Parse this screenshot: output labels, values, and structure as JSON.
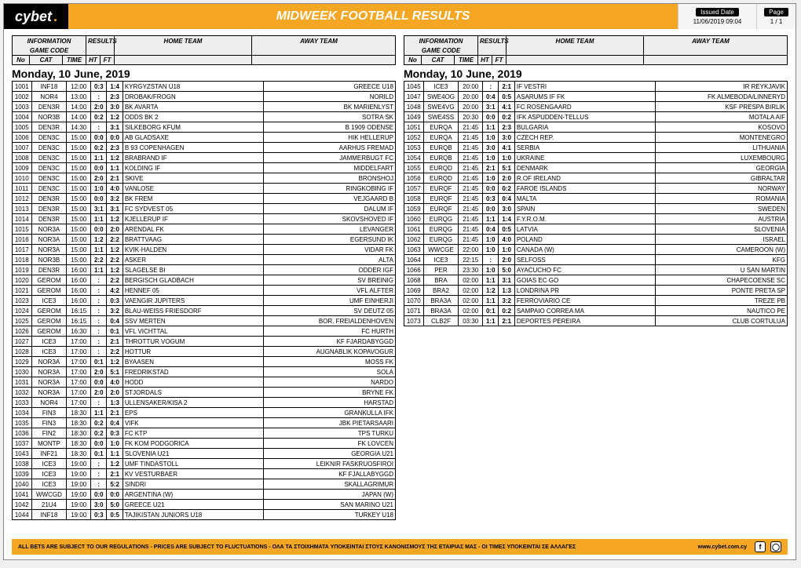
{
  "brand": {
    "cy": "cy",
    "bet": "bet",
    "dot": "."
  },
  "title": "MIDWEEK FOOTBALL RESULTS",
  "issued": {
    "label": "Issued Date",
    "value": "11/06/2019 09:04"
  },
  "page": {
    "label": "Page",
    "value": "1 / 1"
  },
  "footer": {
    "disclaimer": "ALL BETS ARE SUBJECT TO OUR REGULATIONS - PRICES ARE SUBJECT TO FLUCTUATIONS - ΟΛΑ ΤΑ ΣΤΟΙΧΗΜΑΤΑ ΥΠΟΚΕΙΝΤΑΙ ΣΤΟΥΣ ΚΑΝΟΝΙΣΜΟΥΣ ΤΗΣ ΕΤΑΙΡΙΑΣ ΜΑΣ - ΟΙ ΤΙΜΕΣ ΥΠΟΚΕΙΝΤΑΙ ΣΕ ΑΛΛΑΓΕΣ",
    "url": "www.cybet.com.cy"
  },
  "header_labels": {
    "information": "INFORMATION",
    "gamecode": "GAME CODE",
    "results": "RESULTS",
    "hometeam": "HOME TEAM",
    "awayteam": "AWAY TEAM",
    "no": "No",
    "cat": "CAT",
    "time": "TIME",
    "ht": "HT",
    "ft": "FT"
  },
  "date_heading": "Monday, 10 June, 2019",
  "left_rows": [
    {
      "no": "1001",
      "cat": "INF18",
      "time": "12:00",
      "ht": "0:3",
      "ft": "1:4",
      "home": "KYRGYZSTAN U18",
      "away": "GREECE U18"
    },
    {
      "no": "1002",
      "cat": "NOR4",
      "time": "13:00",
      "ht": ":",
      "ft": "2:3",
      "home": "DROBAK/FROGN",
      "away": "NORILD"
    },
    {
      "no": "1003",
      "cat": "DEN3R",
      "time": "14:00",
      "ht": "2:0",
      "ft": "3:0",
      "home": "BK AVARTA",
      "away": "BK MARIENLYST"
    },
    {
      "no": "1004",
      "cat": "NOR3B",
      "time": "14:00",
      "ht": "0:2",
      "ft": "1:2",
      "home": "ODDS BK 2",
      "away": "SOTRA SK"
    },
    {
      "no": "1005",
      "cat": "DEN3R",
      "time": "14:30",
      "ht": ":",
      "ft": "3:1",
      "home": "SILKEBORG KFUM",
      "away": "B 1909 ODENSE"
    },
    {
      "no": "1006",
      "cat": "DEN3C",
      "time": "15:00",
      "ht": "0:0",
      "ft": "0:0",
      "home": "AB GLADSAXE",
      "away": "HIK HELLERUP"
    },
    {
      "no": "1007",
      "cat": "DEN3C",
      "time": "15:00",
      "ht": "0:2",
      "ft": "2:3",
      "home": "B 93 COPENHAGEN",
      "away": "AARHUS FREMAD"
    },
    {
      "no": "1008",
      "cat": "DEN3C",
      "time": "15:00",
      "ht": "1:1",
      "ft": "1:2",
      "home": "BRABRAND IF",
      "away": "JAMMERBUGT FC"
    },
    {
      "no": "1009",
      "cat": "DEN3C",
      "time": "15:00",
      "ht": "0:0",
      "ft": "1:1",
      "home": "KOLDING IF",
      "away": "MIDDELFART"
    },
    {
      "no": "1010",
      "cat": "DEN3C",
      "time": "15:00",
      "ht": "2:0",
      "ft": "2:1",
      "home": "SKIVE",
      "away": "BRONSHOJ"
    },
    {
      "no": "1011",
      "cat": "DEN3C",
      "time": "15:00",
      "ht": "1:0",
      "ft": "4:0",
      "home": "VANLOSE",
      "away": "RINGKOBING IF"
    },
    {
      "no": "1012",
      "cat": "DEN3R",
      "time": "15:00",
      "ht": "0:0",
      "ft": "3:2",
      "home": "BK FREM",
      "away": "VEJGAARD B"
    },
    {
      "no": "1013",
      "cat": "DEN3R",
      "time": "15:00",
      "ht": "3:1",
      "ft": "3:1",
      "home": "FC SYDVEST 05",
      "away": "DALUM IF"
    },
    {
      "no": "1014",
      "cat": "DEN3R",
      "time": "15:00",
      "ht": "1:1",
      "ft": "1:2",
      "home": "KJELLERUP IF",
      "away": "SKOVSHOVED IF"
    },
    {
      "no": "1015",
      "cat": "NOR3A",
      "time": "15:00",
      "ht": "0:0",
      "ft": "2:0",
      "home": "ARENDAL FK",
      "away": "LEVANGER"
    },
    {
      "no": "1016",
      "cat": "NOR3A",
      "time": "15:00",
      "ht": "1:2",
      "ft": "2:2",
      "home": "BRATTVAAG",
      "away": "EGERSUND IK"
    },
    {
      "no": "1017",
      "cat": "NOR3A",
      "time": "15:00",
      "ht": "1:1",
      "ft": "1:2",
      "home": "KVIK-HALDEN",
      "away": "VIDAR FK"
    },
    {
      "no": "1018",
      "cat": "NOR3B",
      "time": "15:00",
      "ht": "2:2",
      "ft": "2:2",
      "home": "ASKER",
      "away": "ALTA"
    },
    {
      "no": "1019",
      "cat": "DEN3R",
      "time": "16:00",
      "ht": "1:1",
      "ft": "1:2",
      "home": "SLAGELSE BI",
      "away": "ODDER IGF"
    },
    {
      "no": "1020",
      "cat": "GEROM",
      "time": "16:00",
      "ht": ":",
      "ft": "2:2",
      "home": "BERGISCH GLADBACH",
      "away": "SV BREINIG"
    },
    {
      "no": "1021",
      "cat": "GEROM",
      "time": "16:00",
      "ht": ":",
      "ft": "4:2",
      "home": "HENNEF 05",
      "away": "VFL ALFTER"
    },
    {
      "no": "1023",
      "cat": "ICE3",
      "time": "16:00",
      "ht": ":",
      "ft": "0:3",
      "home": "VAENGIR JUPITERS",
      "away": "UMF EINHERJI"
    },
    {
      "no": "1024",
      "cat": "GEROM",
      "time": "16:15",
      "ht": ":",
      "ft": "3:2",
      "home": "BLAU-WEISS FRIESDORF",
      "away": "SV DEUTZ 05"
    },
    {
      "no": "1025",
      "cat": "GEROM",
      "time": "16:15",
      "ht": ":",
      "ft": "0:4",
      "home": "SSV MERTEN",
      "away": "BOR. FREIALDENHOVEN"
    },
    {
      "no": "1026",
      "cat": "GEROM",
      "time": "16:30",
      "ht": ":",
      "ft": "0:1",
      "home": "VFL VICHTTAL",
      "away": "FC HURTH"
    },
    {
      "no": "1027",
      "cat": "ICE3",
      "time": "17:00",
      "ht": ":",
      "ft": "2:1",
      "home": "THROTTUR VOGUM",
      "away": "KF FJARDABYGGD"
    },
    {
      "no": "1028",
      "cat": "ICE3",
      "time": "17:00",
      "ht": ":",
      "ft": "2:2",
      "home": "HOTTUR",
      "away": "AUGNABLIK KOPAVOGUR"
    },
    {
      "no": "1029",
      "cat": "NOR3A",
      "time": "17:00",
      "ht": "0:1",
      "ft": "1:2",
      "home": "BYAASEN",
      "away": "MOSS FK"
    },
    {
      "no": "1030",
      "cat": "NOR3A",
      "time": "17:00",
      "ht": "2:0",
      "ft": "5:1",
      "home": "FREDRIKSTAD",
      "away": "SOLA"
    },
    {
      "no": "1031",
      "cat": "NOR3A",
      "time": "17:00",
      "ht": "0:0",
      "ft": "4:0",
      "home": "HODD",
      "away": "NARDO"
    },
    {
      "no": "1032",
      "cat": "NOR3A",
      "time": "17:00",
      "ht": "2:0",
      "ft": "2:0",
      "home": "STJORDALS",
      "away": "BRYNE FK"
    },
    {
      "no": "1033",
      "cat": "NOR4",
      "time": "17:00",
      "ht": ":",
      "ft": "1:3",
      "home": "ULLENSAKER/KISA 2",
      "away": "HARSTAD"
    },
    {
      "no": "1034",
      "cat": "FIN3",
      "time": "18:30",
      "ht": "1:1",
      "ft": "2:1",
      "home": "EPS",
      "away": "GRANKULLA IFK"
    },
    {
      "no": "1035",
      "cat": "FIN3",
      "time": "18:30",
      "ht": "0:2",
      "ft": "0:4",
      "home": "VIFK",
      "away": "JBK PIETARSAARI"
    },
    {
      "no": "1036",
      "cat": "FIN2",
      "time": "18:30",
      "ht": "0:2",
      "ft": "0:3",
      "home": "FC KTP",
      "away": "TPS TURKU"
    },
    {
      "no": "1037",
      "cat": "MONTP",
      "time": "18:30",
      "ht": "0:0",
      "ft": "1:0",
      "home": "FK KOM PODGORICA",
      "away": "FK LOVCEN"
    },
    {
      "no": "1043",
      "cat": "INF21",
      "time": "18:30",
      "ht": "0:1",
      "ft": "1:1",
      "home": "SLOVENIA U21",
      "away": "GEORGIA U21"
    },
    {
      "no": "1038",
      "cat": "ICE3",
      "time": "19:00",
      "ht": ":",
      "ft": "1:2",
      "home": "UMF TINDASTOLL",
      "away": "LEIKNIR FASKRUOSFIROI"
    },
    {
      "no": "1039",
      "cat": "ICE3",
      "time": "19:00",
      "ht": ":",
      "ft": "2:1",
      "home": "KV VESTURBAER",
      "away": "KF FJALLABYGGD"
    },
    {
      "no": "1040",
      "cat": "ICE3",
      "time": "19:00",
      "ht": ":",
      "ft": "5:2",
      "home": "SINDRI",
      "away": "SKALLAGRIMUR"
    },
    {
      "no": "1041",
      "cat": "WWCGD",
      "time": "19:00",
      "ht": "0:0",
      "ft": "0:0",
      "home": "ARGENTINA (W)",
      "away": "JAPAN (W)"
    },
    {
      "no": "1042",
      "cat": "21U4",
      "time": "19:00",
      "ht": "3:0",
      "ft": "5:0",
      "home": "GREECE U21",
      "away": "SAN MARINO U21"
    },
    {
      "no": "1044",
      "cat": "INF18",
      "time": "19:00",
      "ht": "0:3",
      "ft": "0:5",
      "home": "TAJIKISTAN JUNIORS U18",
      "away": "TURKEY U18"
    }
  ],
  "right_rows": [
    {
      "no": "1045",
      "cat": "ICE3",
      "time": "20:00",
      "ht": ":",
      "ft": "2:1",
      "home": "IF VESTRI",
      "away": "IR REYKJAVIK"
    },
    {
      "no": "1047",
      "cat": "SWE4OG",
      "time": "20:00",
      "ht": "0:4",
      "ft": "0:5",
      "home": "ASARUMS IF FK",
      "away": "FK ALMEBODA/LINNERYD"
    },
    {
      "no": "1048",
      "cat": "SWE4VG",
      "time": "20:00",
      "ht": "3:1",
      "ft": "4:1",
      "home": "FC ROSENGAARD",
      "away": "KSF PRESPA BIRLIK"
    },
    {
      "no": "1049",
      "cat": "SWE4SS",
      "time": "20:30",
      "ht": "0:0",
      "ft": "0:2",
      "home": "IFK ASPUDDEN-TELLUS",
      "away": "MOTALA AIF"
    },
    {
      "no": "1051",
      "cat": "EURQA",
      "time": "21:45",
      "ht": "1:1",
      "ft": "2:3",
      "home": "BULGARIA",
      "away": "KOSOVO"
    },
    {
      "no": "1052",
      "cat": "EURQA",
      "time": "21:45",
      "ht": "1:0",
      "ft": "3:0",
      "home": "CZECH REP.",
      "away": "MONTENEGRO"
    },
    {
      "no": "1053",
      "cat": "EURQB",
      "time": "21:45",
      "ht": "3:0",
      "ft": "4:1",
      "home": "SERBIA",
      "away": "LITHUANIA"
    },
    {
      "no": "1054",
      "cat": "EURQB",
      "time": "21:45",
      "ht": "1:0",
      "ft": "1:0",
      "home": "UKRAINE",
      "away": "LUXEMBOURG"
    },
    {
      "no": "1055",
      "cat": "EURQD",
      "time": "21:45",
      "ht": "2:1",
      "ft": "5:1",
      "home": "DENMARK",
      "away": "GEORGIA"
    },
    {
      "no": "1056",
      "cat": "EURQD",
      "time": "21:45",
      "ht": "1:0",
      "ft": "2:0",
      "home": "R.OF IRELAND",
      "away": "GIBRALTAR"
    },
    {
      "no": "1057",
      "cat": "EURQF",
      "time": "21:45",
      "ht": "0:0",
      "ft": "0:2",
      "home": "FAROE ISLANDS",
      "away": "NORWAY"
    },
    {
      "no": "1058",
      "cat": "EURQF",
      "time": "21:45",
      "ht": "0:3",
      "ft": "0:4",
      "home": "MALTA",
      "away": "ROMANIA"
    },
    {
      "no": "1059",
      "cat": "EURQF",
      "time": "21:45",
      "ht": "0:0",
      "ft": "3:0",
      "home": "SPAIN",
      "away": "SWEDEN"
    },
    {
      "no": "1060",
      "cat": "EURQG",
      "time": "21:45",
      "ht": "1:1",
      "ft": "1:4",
      "home": "F.Y.R.O.M.",
      "away": "AUSTRIA"
    },
    {
      "no": "1061",
      "cat": "EURQG",
      "time": "21:45",
      "ht": "0:4",
      "ft": "0:5",
      "home": "LATVIA",
      "away": "SLOVENIA"
    },
    {
      "no": "1062",
      "cat": "EURQG",
      "time": "21:45",
      "ht": "1:0",
      "ft": "4:0",
      "home": "POLAND",
      "away": "ISRAEL"
    },
    {
      "no": "1063",
      "cat": "WWCGE",
      "time": "22:00",
      "ht": "1:0",
      "ft": "1:0",
      "home": "CANADA (W)",
      "away": "CAMEROON (W)"
    },
    {
      "no": "1064",
      "cat": "ICE3",
      "time": "22:15",
      "ht": ":",
      "ft": "2:0",
      "home": "SELFOSS",
      "away": "KFG"
    },
    {
      "no": "1066",
      "cat": "PER",
      "time": "23:30",
      "ht": "1:0",
      "ft": "5:0",
      "home": "AYACUCHO FC",
      "away": "U SAN MARTIN"
    },
    {
      "no": "1068",
      "cat": "BRA",
      "time": "02:00",
      "ht": "1:1",
      "ft": "3:1",
      "home": "GOIAS EC GO",
      "away": "CHAPECOENSE SC"
    },
    {
      "no": "1069",
      "cat": "BRA2",
      "time": "02:00",
      "ht": "1:2",
      "ft": "1:3",
      "home": "LONDRINA PR",
      "away": "PONTE PRETA SP"
    },
    {
      "no": "1070",
      "cat": "BRA3A",
      "time": "02:00",
      "ht": "1:1",
      "ft": "3:2",
      "home": "FERROVIARIO CE",
      "away": "TREZE PB"
    },
    {
      "no": "1071",
      "cat": "BRA3A",
      "time": "02:00",
      "ht": "0:1",
      "ft": "0:2",
      "home": "SAMPAIO CORREA MA",
      "away": "NAUTICO PE"
    },
    {
      "no": "1073",
      "cat": "CLB2F",
      "time": "03:30",
      "ht": "1:1",
      "ft": "2:1",
      "home": "DEPORTES PEREIRA",
      "away": "CLUB CORTULUA"
    }
  ]
}
